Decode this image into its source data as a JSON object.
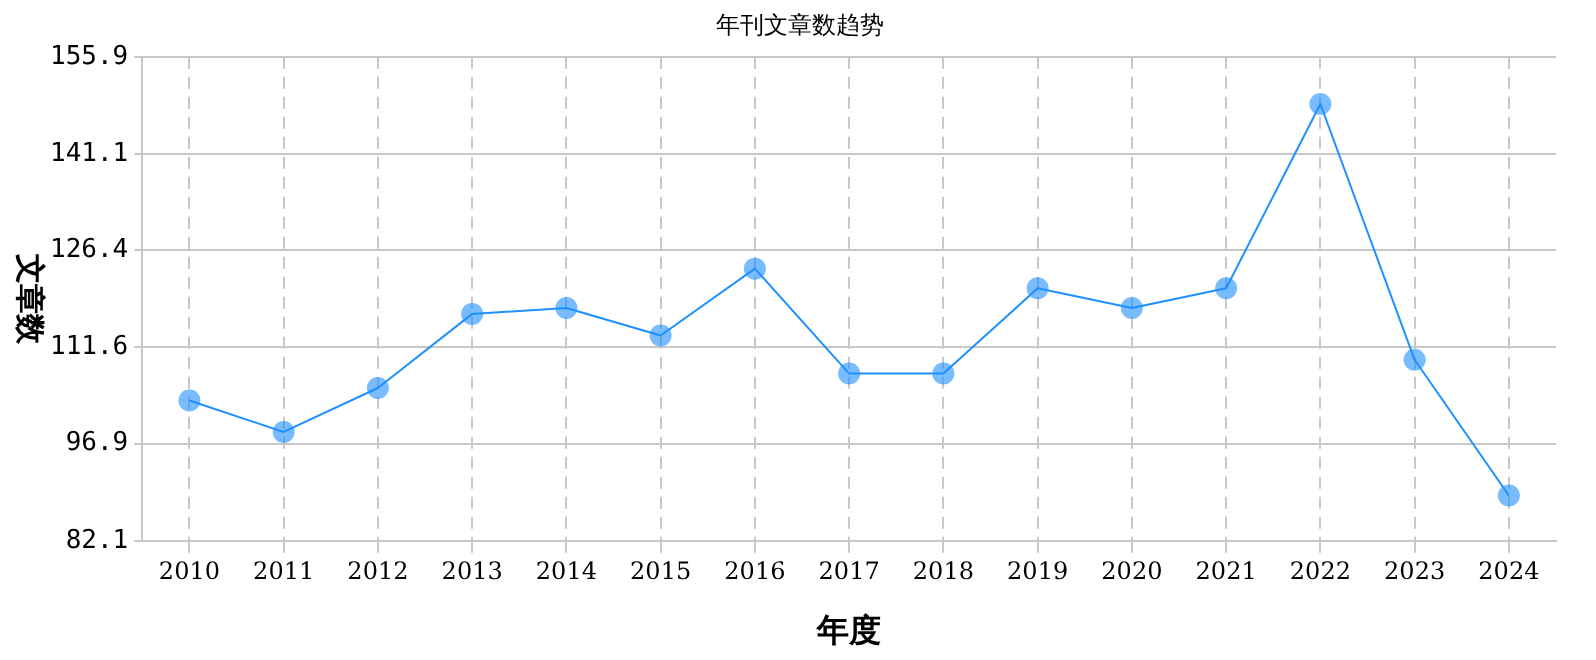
{
  "chart_data": {
    "type": "line",
    "title": "年刊文章数趋势",
    "xlabel": "年度",
    "ylabel": "文章数",
    "categories": [
      "2010",
      "2011",
      "2012",
      "2013",
      "2014",
      "2015",
      "2016",
      "2017",
      "2018",
      "2019",
      "2020",
      "2021",
      "2022",
      "2023",
      "2024"
    ],
    "series": [
      {
        "color": "#1e90ff",
        "values": [
          103.5,
          98.7,
          105.4,
          116.7,
          117.6,
          113.4,
          123.6,
          107.6,
          107.6,
          120.6,
          117.6,
          120.6,
          148.7,
          109.7,
          89.0
        ]
      }
    ],
    "ylim": [
      82.1,
      155.9
    ],
    "yticks": [
      82.1,
      96.9,
      111.6,
      126.4,
      141.1,
      155.9
    ],
    "grid": true,
    "legend": false,
    "marker": "circle",
    "line_style": "solid"
  }
}
